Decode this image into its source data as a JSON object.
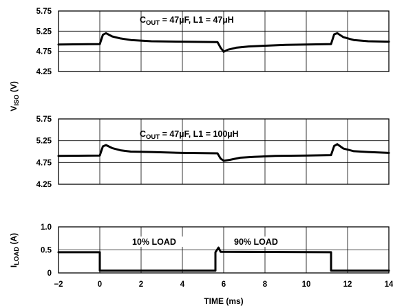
{
  "chart_data": {
    "type": "line",
    "shared_x": {
      "label": "TIME (ms)",
      "xlim": [
        -2,
        14
      ],
      "ticks": [
        "−2",
        "0",
        "2",
        "4",
        "6",
        "8",
        "10",
        "12",
        "14"
      ]
    },
    "y_shared_label": {
      "main": "V",
      "sub": "ISO",
      "tail": " (V)"
    },
    "panels": [
      {
        "id": "top",
        "annotation": {
          "c": "C",
          "c_sub": "OUT",
          "rest": " = 47µF, L1 = 47µH"
        },
        "ylim": [
          4.25,
          5.75
        ],
        "yticks": [
          "5.75",
          "5.25",
          "4.75",
          "4.25"
        ],
        "grid": true,
        "series": [
          {
            "x": [
              -2,
              0.0,
              0.15,
              0.3,
              0.6,
              1,
              1.5,
              2.5,
              4,
              5.7,
              5.85,
              6.0,
              6.2,
              6.6,
              7.2,
              8,
              9,
              10,
              11.2,
              11.35,
              11.5,
              11.8,
              12.3,
              13,
              14
            ],
            "y": [
              4.92,
              4.93,
              5.16,
              5.2,
              5.12,
              5.07,
              5.03,
              5.0,
              4.99,
              4.98,
              4.84,
              4.74,
              4.79,
              4.84,
              4.87,
              4.89,
              4.91,
              4.92,
              4.93,
              5.17,
              5.2,
              5.1,
              5.03,
              5.0,
              4.99
            ]
          }
        ]
      },
      {
        "id": "middle",
        "annotation": {
          "c": "C",
          "c_sub": "OUT",
          "rest": " = 47µF, L1 = 100µH"
        },
        "ylim": [
          4.25,
          5.75
        ],
        "yticks": [
          "5.75",
          "5.25",
          "4.75",
          "4.25"
        ],
        "grid": true,
        "series": [
          {
            "x": [
              -2,
              0.0,
              0.15,
              0.3,
              0.6,
              1,
              1.5,
              2.5,
              4,
              5.7,
              5.85,
              6.0,
              6.3,
              6.8,
              7.5,
              8.5,
              10,
              11.2,
              11.35,
              11.5,
              11.8,
              12.3,
              13,
              14
            ],
            "y": [
              4.9,
              4.91,
              5.12,
              5.15,
              5.08,
              5.03,
              5.0,
              4.99,
              4.97,
              4.96,
              4.84,
              4.79,
              4.81,
              4.86,
              4.88,
              4.9,
              4.91,
              4.92,
              5.13,
              5.17,
              5.07,
              5.01,
              4.99,
              4.97
            ]
          }
        ]
      },
      {
        "id": "bottom",
        "ylabel": {
          "main": "I",
          "sub": "LOAD",
          "tail": " (A)"
        },
        "ylim": [
          0,
          1.0
        ],
        "yticks": [
          "1.0",
          "0.5",
          "0"
        ],
        "grid": true,
        "annotations": [
          "10% LOAD",
          "90% LOAD"
        ],
        "series": [
          {
            "x": [
              -2,
              0.0,
              0.0,
              5.6,
              5.6,
              5.75,
              5.85,
              11.2,
              11.2,
              14
            ],
            "y": [
              0.45,
              0.45,
              0.05,
              0.05,
              0.45,
              0.55,
              0.46,
              0.45,
              0.05,
              0.05
            ]
          }
        ]
      }
    ]
  }
}
